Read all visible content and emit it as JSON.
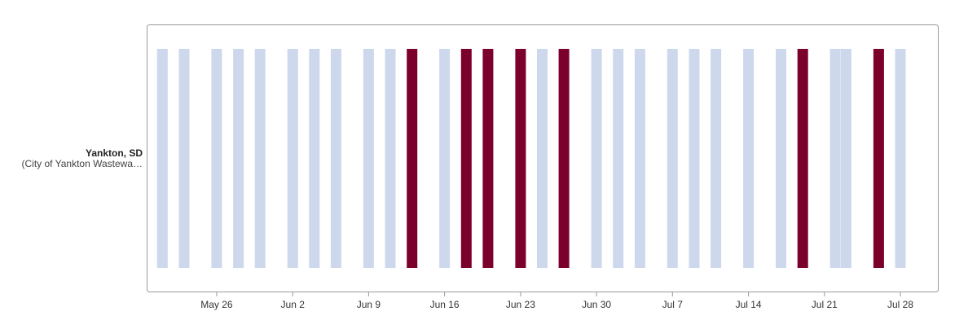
{
  "chart_data": {
    "type": "timeline",
    "colors": {
      "normal": "#cdd8ec",
      "detected": "#7b002c",
      "frame": "#9a9a9a"
    },
    "rows": [
      {
        "title": "Yankton, SD",
        "subtitle": "(City of Yankton Wastewa…"
      }
    ],
    "x_start": "2024-05-20",
    "x_end": "2024-07-31",
    "ticks": [
      "May 26",
      "Jun 2",
      "Jun 9",
      "Jun 16",
      "Jun 23",
      "Jun 30",
      "Jul 7",
      "Jul 14",
      "Jul 21",
      "Jul 28"
    ],
    "tick_dates": [
      "2024-05-26",
      "2024-06-02",
      "2024-06-09",
      "2024-06-16",
      "2024-06-23",
      "2024-06-30",
      "2024-07-07",
      "2024-07-14",
      "2024-07-21",
      "2024-07-28"
    ],
    "samples": [
      {
        "date": "2024-05-21",
        "detected": false
      },
      {
        "date": "2024-05-23",
        "detected": false
      },
      {
        "date": "2024-05-26",
        "detected": false
      },
      {
        "date": "2024-05-28",
        "detected": false
      },
      {
        "date": "2024-05-30",
        "detected": false
      },
      {
        "date": "2024-06-02",
        "detected": false
      },
      {
        "date": "2024-06-04",
        "detected": false
      },
      {
        "date": "2024-06-06",
        "detected": false
      },
      {
        "date": "2024-06-09",
        "detected": false
      },
      {
        "date": "2024-06-11",
        "detected": false
      },
      {
        "date": "2024-06-13",
        "detected": true
      },
      {
        "date": "2024-06-16",
        "detected": false
      },
      {
        "date": "2024-06-18",
        "detected": true
      },
      {
        "date": "2024-06-20",
        "detected": true
      },
      {
        "date": "2024-06-23",
        "detected": true
      },
      {
        "date": "2024-06-25",
        "detected": false
      },
      {
        "date": "2024-06-27",
        "detected": true
      },
      {
        "date": "2024-06-30",
        "detected": false
      },
      {
        "date": "2024-07-02",
        "detected": false
      },
      {
        "date": "2024-07-04",
        "detected": false
      },
      {
        "date": "2024-07-07",
        "detected": false
      },
      {
        "date": "2024-07-09",
        "detected": false
      },
      {
        "date": "2024-07-11",
        "detected": false
      },
      {
        "date": "2024-07-14",
        "detected": false
      },
      {
        "date": "2024-07-17",
        "detected": false
      },
      {
        "date": "2024-07-19",
        "detected": true
      },
      {
        "date": "2024-07-22",
        "detected": false
      },
      {
        "date": "2024-07-23",
        "detected": false
      },
      {
        "date": "2024-07-26",
        "detected": true
      },
      {
        "date": "2024-07-28",
        "detected": false
      }
    ]
  }
}
